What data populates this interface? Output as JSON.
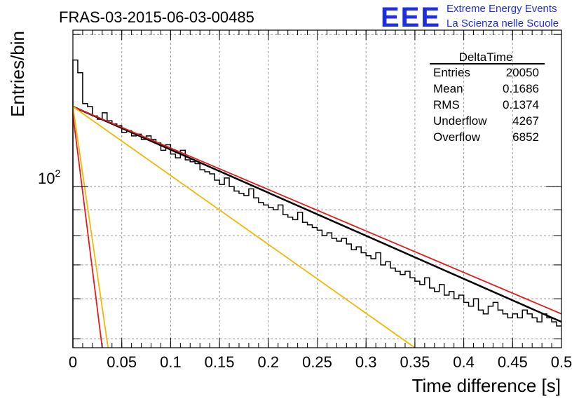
{
  "chart_data": {
    "type": "line",
    "title": "FRAS-03-2015-06-03-00485",
    "xlabel": "Time difference [s]",
    "ylabel": "Entries/bin",
    "xlim": [
      0,
      0.5
    ],
    "ylim": [
      48,
      204
    ],
    "yscale": "log",
    "grid": true,
    "x_ticks": [
      "0",
      "0.05",
      "0.1",
      "0.15",
      "0.2",
      "0.25",
      "0.3",
      "0.35",
      "0.4",
      "0.45",
      "0.5"
    ],
    "y_tick_label": "10",
    "y_tick_exponent": "2",
    "histogram": {
      "name": "DeltaTime",
      "bin_width": 0.005,
      "values": [
        178,
        168,
        146,
        144,
        138,
        136,
        140,
        135,
        133,
        132,
        128,
        129,
        126,
        127,
        124,
        126,
        124,
        122,
        118,
        121,
        116,
        114,
        118,
        113,
        112,
        111,
        108,
        107,
        106,
        103,
        101,
        104,
        100,
        98,
        97,
        96,
        99,
        95,
        93,
        92,
        91,
        90,
        92,
        88,
        87,
        86,
        89,
        85,
        84,
        83,
        82,
        80,
        81,
        79,
        78,
        79,
        77,
        75,
        76,
        74,
        73,
        72,
        74,
        70,
        71,
        69,
        68,
        67,
        68,
        66,
        65,
        64,
        66,
        63,
        62,
        64,
        61,
        62,
        60,
        61,
        59,
        58,
        60,
        57,
        56,
        58,
        59,
        57,
        56,
        55,
        56,
        55,
        57,
        56,
        55,
        54,
        56,
        55,
        54,
        53
      ]
    },
    "series": [
      {
        "color": "#000000",
        "x": [
          0,
          0.5
        ],
        "y": [
          144,
          54
        ]
      },
      {
        "color": "#e41a1c",
        "x": [
          0,
          0.5
        ],
        "y": [
          144,
          56
        ]
      },
      {
        "color": "#f2b705",
        "x": [
          0,
          0.35
        ],
        "y": [
          144,
          48
        ]
      },
      {
        "color": "#e41a1c",
        "x": [
          0,
          0.03
        ],
        "y": [
          139,
          48
        ]
      },
      {
        "color": "#f2b705",
        "x": [
          0,
          0.036
        ],
        "y": [
          144,
          48
        ]
      }
    ],
    "stats_box": {
      "title": "DeltaTime",
      "rows": [
        {
          "label": "Entries",
          "value": "20050"
        },
        {
          "label": "Mean",
          "value": "0.1686"
        },
        {
          "label": "RMS",
          "value": "0.1374"
        },
        {
          "label": "Underflow",
          "value": "4267"
        },
        {
          "label": "Overflow",
          "value": "6852"
        }
      ]
    }
  },
  "logo": {
    "text": "EEE",
    "line1": "Extreme Energy Events",
    "line2": "La Scienza nelle Scuole",
    "color": "#1f2fe0"
  }
}
